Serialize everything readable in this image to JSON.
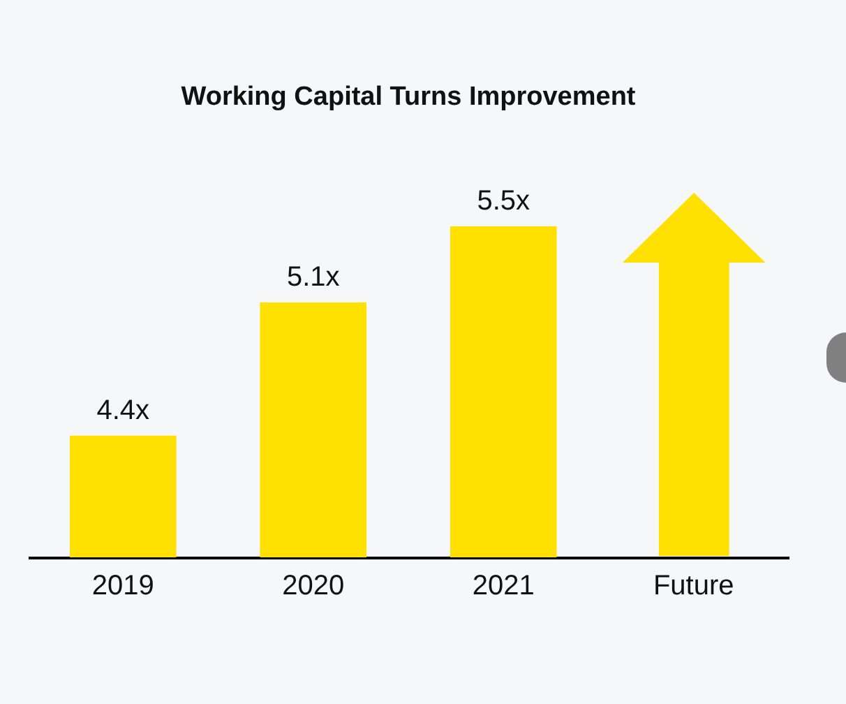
{
  "chart_data": {
    "type": "bar",
    "title": "Working Capital Turns Improvement",
    "categories": [
      "2019",
      "2020",
      "2021",
      "Future"
    ],
    "values": [
      4.4,
      5.1,
      5.5,
      null
    ],
    "value_labels": [
      "4.4x",
      "5.1x",
      "5.5x",
      null
    ],
    "color": "#ffe000",
    "ylim": [
      3.76,
      5.5
    ],
    "tick_labels": "x"
  }
}
